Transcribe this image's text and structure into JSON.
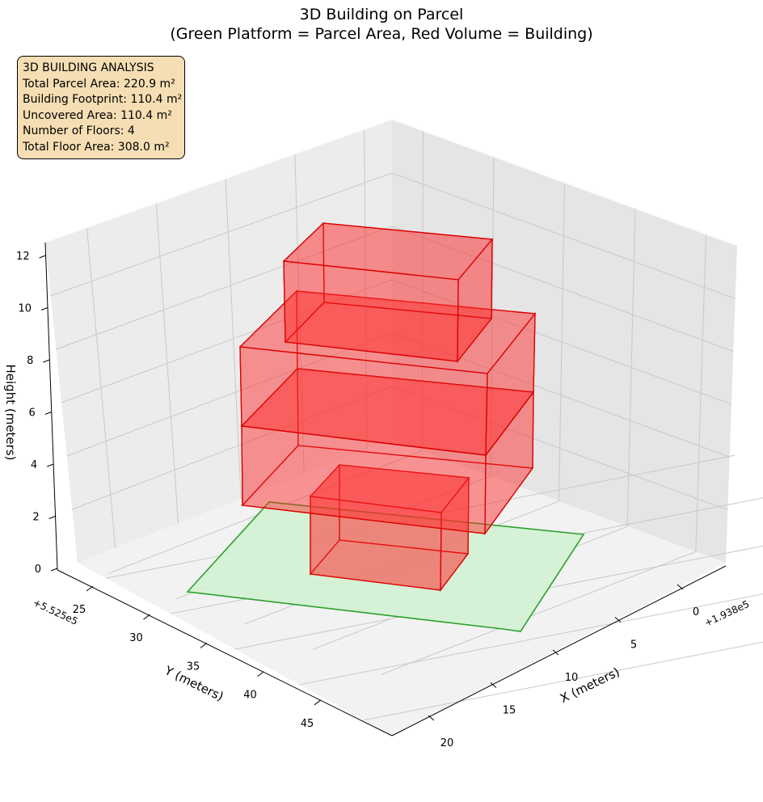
{
  "chart_data": {
    "type": "3d-bar",
    "title": "3D Building on Parcel",
    "subtitle": "(Green Platform = Parcel Area, Red Volume = Building)",
    "xlabel": "X (meters)",
    "ylabel": "Y (meters)",
    "zlabel": "Height (meters)",
    "x_offset": "+1.938e5",
    "y_offset": "+5.525e5",
    "x_ticks": [
      "0",
      "5",
      "10",
      "15",
      "20"
    ],
    "y_ticks": [
      "25",
      "30",
      "35",
      "40",
      "45"
    ],
    "z_ticks": [
      "0",
      "2",
      "4",
      "6",
      "8",
      "10",
      "12"
    ],
    "zlim": [
      0,
      12
    ],
    "grid": true,
    "colors": {
      "parcel_fill": "#d3f2d3",
      "parcel_edge": "#2ca02c",
      "building_fill": "#ff2a2a",
      "building_edge": "#dd0000",
      "info_bg": "#f5deb3"
    },
    "series": [
      {
        "type": "parcel_platform"
      },
      {
        "type": "building_floor",
        "floor": 1,
        "z_base": 0,
        "height": 3
      },
      {
        "type": "building_floor",
        "floor": 2,
        "z_base": 3,
        "height": 3
      },
      {
        "type": "building_floor",
        "floor": 3,
        "z_base": 6,
        "height": 3
      },
      {
        "type": "building_floor",
        "floor": 4,
        "z_base": 9,
        "height": 3
      }
    ]
  },
  "info": {
    "heading": "3D BUILDING ANALYSIS",
    "lines": [
      "Total Parcel Area: 220.9 m²",
      "Building Footprint: 110.4 m²",
      "Uncovered Area: 110.4 m²",
      "Number of Floors: 4",
      "Total Floor Area: 308.0 m²"
    ]
  }
}
